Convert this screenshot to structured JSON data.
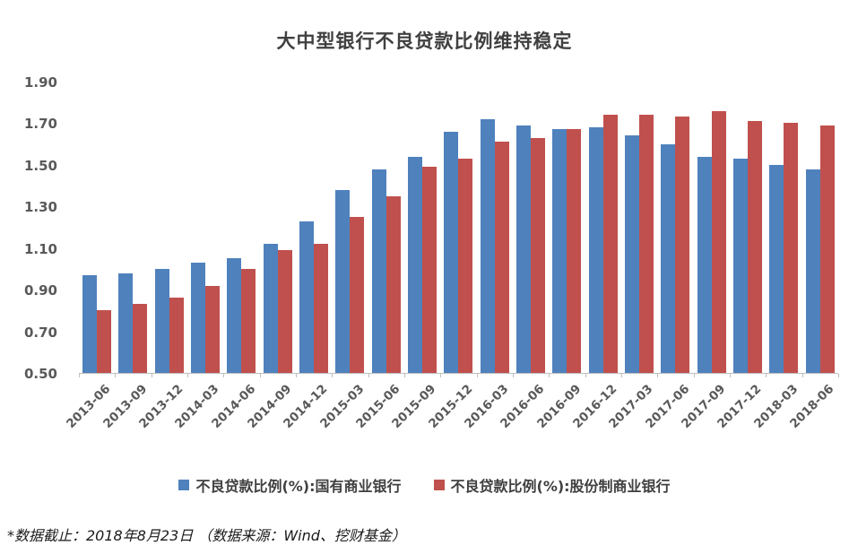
{
  "chart_data": {
    "type": "bar",
    "title": "大中型银行不良贷款比例维持稳定",
    "categories": [
      "2013-06",
      "2013-09",
      "2013-12",
      "2014-03",
      "2014-06",
      "2014-09",
      "2014-12",
      "2015-03",
      "2015-06",
      "2015-09",
      "2015-12",
      "2016-03",
      "2016-06",
      "2016-09",
      "2016-12",
      "2017-03",
      "2017-06",
      "2017-09",
      "2017-12",
      "2018-03",
      "2018-06"
    ],
    "series": [
      {
        "name": "不良贷款比例(%):国有商业银行",
        "color": "#4F81BD",
        "values": [
          0.97,
          0.98,
          1.0,
          1.03,
          1.05,
          1.12,
          1.23,
          1.38,
          1.48,
          1.54,
          1.66,
          1.72,
          1.69,
          1.67,
          1.68,
          1.64,
          1.6,
          1.54,
          1.53,
          1.5,
          1.48
        ]
      },
      {
        "name": "不良贷款比例(%):股份制商业银行",
        "color": "#C0504D",
        "values": [
          0.8,
          0.83,
          0.86,
          0.92,
          1.0,
          1.09,
          1.12,
          1.25,
          1.35,
          1.49,
          1.53,
          1.61,
          1.63,
          1.67,
          1.74,
          1.74,
          1.73,
          1.76,
          1.71,
          1.7,
          1.69
        ]
      }
    ],
    "ylim": [
      0.5,
      1.9
    ],
    "yticks": [
      "1.90",
      "1.70",
      "1.50",
      "1.30",
      "1.10",
      "0.90",
      "0.70",
      "0.50"
    ],
    "xlabel": "",
    "ylabel": "",
    "grid": false,
    "legend_position": "bottom"
  },
  "footnote": {
    "text": "*数据截止：2018年8月23日 （数据来源：Wind、挖财基金）"
  },
  "style_colors": {
    "axis_line": "#BFBFBF",
    "tick_text": "#595959",
    "title_text": "#404040"
  }
}
